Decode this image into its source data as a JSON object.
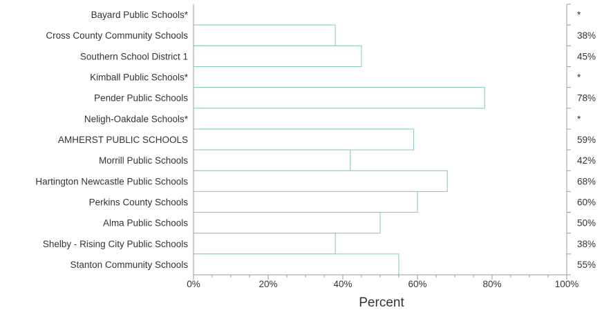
{
  "chart_data": {
    "type": "bar",
    "orientation": "horizontal",
    "categories": [
      "Bayard Public Schools*",
      "Cross County Community Schools",
      "Southern School District 1",
      "Kimball Public Schools*",
      "Pender Public Schools",
      "Neligh-Oakdale Schools*",
      "AMHERST PUBLIC SCHOOLS",
      "Morrill Public Schools",
      "Hartington Newcastle Public Schools",
      "Perkins County Schools",
      "Alma Public Schools",
      "Shelby - Rising City Public Schools",
      "Stanton Community Schools"
    ],
    "values": [
      0,
      38,
      45,
      0,
      78,
      0,
      59,
      42,
      68,
      60,
      50,
      38,
      55
    ],
    "value_labels": [
      "*",
      "38%",
      "45%",
      "*",
      "78%",
      "*",
      "59%",
      "42%",
      "68%",
      "60%",
      "50%",
      "38%",
      "55%"
    ],
    "xlabel": "Percent",
    "xlim": [
      0,
      100
    ],
    "x_ticks": [
      "0%",
      "20%",
      "40%",
      "60%",
      "80%",
      "100%"
    ],
    "bar_color": "#7fc8b4",
    "grid": false
  }
}
